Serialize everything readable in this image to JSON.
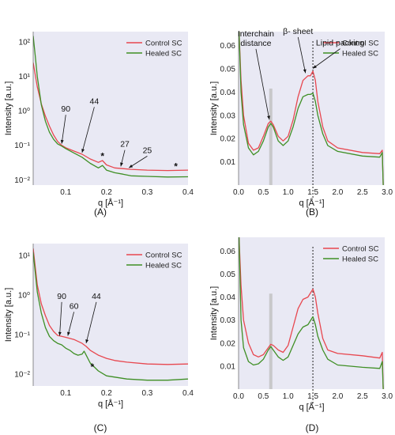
{
  "colors": {
    "control": "#e8474f",
    "healed": "#3f8f25",
    "panel_bg": "#e9e9f4",
    "gray_band": "#c2c2c2",
    "axis": "#222222"
  },
  "chart_data": [
    {
      "id": "A",
      "type": "line",
      "panel_label": "(A)",
      "xlabel": "q [Å⁻¹]",
      "ylabel": "Intensity [a.u.]",
      "yscale": "log",
      "xlim": [
        0.02,
        0.4
      ],
      "ylim": [
        0.007,
        200
      ],
      "x_ticks": [
        "0.1",
        "0.2",
        "0.3",
        "0.4"
      ],
      "x_tick_values": [
        0.1,
        0.2,
        0.3,
        0.4
      ],
      "y_ticks": [
        "10⁻²",
        "10⁻¹",
        "10⁰",
        "10¹",
        "10²"
      ],
      "y_tick_values": [
        0.01,
        0.1,
        1,
        10,
        100
      ],
      "grid": false,
      "legend": "top-right",
      "series": [
        {
          "name": "Control SC",
          "color": "#e8474f",
          "points": [
            [
              0.02,
              25
            ],
            [
              0.03,
              5
            ],
            [
              0.04,
              1.6
            ],
            [
              0.05,
              0.7
            ],
            [
              0.06,
              0.36
            ],
            [
              0.07,
              0.2
            ],
            [
              0.08,
              0.13
            ],
            [
              0.09,
              0.1
            ],
            [
              0.1,
              0.085
            ],
            [
              0.12,
              0.068
            ],
            [
              0.14,
              0.055
            ],
            [
              0.16,
              0.04
            ],
            [
              0.18,
              0.032
            ],
            [
              0.19,
              0.036
            ],
            [
              0.2,
              0.027
            ],
            [
              0.22,
              0.022
            ],
            [
              0.24,
              0.021
            ],
            [
              0.26,
              0.02
            ],
            [
              0.3,
              0.019
            ],
            [
              0.35,
              0.0185
            ],
            [
              0.4,
              0.019
            ]
          ]
        },
        {
          "name": "Healed SC",
          "color": "#3f8f25",
          "points": [
            [
              0.02,
              150
            ],
            [
              0.025,
              40
            ],
            [
              0.03,
              10
            ],
            [
              0.04,
              1.5
            ],
            [
              0.05,
              0.5
            ],
            [
              0.06,
              0.24
            ],
            [
              0.07,
              0.15
            ],
            [
              0.08,
              0.11
            ],
            [
              0.09,
              0.095
            ],
            [
              0.1,
              0.08
            ],
            [
              0.12,
              0.06
            ],
            [
              0.14,
              0.045
            ],
            [
              0.16,
              0.03
            ],
            [
              0.18,
              0.022
            ],
            [
              0.19,
              0.026
            ],
            [
              0.2,
              0.019
            ],
            [
              0.22,
              0.016
            ],
            [
              0.24,
              0.0145
            ],
            [
              0.26,
              0.013
            ],
            [
              0.3,
              0.0125
            ],
            [
              0.35,
              0.012
            ],
            [
              0.4,
              0.0122
            ]
          ]
        }
      ],
      "annotations": [
        {
          "text": "90",
          "at": [
            0.09,
            0.1
          ],
          "label_at": [
            0.1,
            0.95
          ]
        },
        {
          "text": "44",
          "at": [
            0.14,
            0.055
          ],
          "label_at": [
            0.17,
            1.6
          ]
        },
        {
          "text": "27",
          "at": [
            0.235,
            0.022
          ],
          "label_at": [
            0.245,
            0.09
          ]
        },
        {
          "text": "25",
          "at": [
            0.255,
            0.02
          ],
          "label_at": [
            0.3,
            0.06
          ]
        }
      ],
      "stars": [
        [
          0.19,
          0.048
        ],
        [
          0.37,
          0.024
        ]
      ]
    },
    {
      "id": "B",
      "type": "line",
      "panel_label": "(B)",
      "xlabel": "q [Å⁻¹]",
      "ylabel": "Intensity [a.u.]",
      "yscale": "linear",
      "xlim": [
        0,
        2.95
      ],
      "ylim": [
        0,
        0.066
      ],
      "x_ticks": [
        "0.0",
        "0.5",
        "1.0",
        "1.5",
        "2.0",
        "2.5",
        "3.0"
      ],
      "x_tick_values": [
        0,
        0.5,
        1,
        1.5,
        2,
        2.5,
        3
      ],
      "y_ticks": [
        "0.01",
        "0.02",
        "0.03",
        "0.04",
        "0.05",
        "0.06"
      ],
      "y_tick_values": [
        0.01,
        0.02,
        0.03,
        0.04,
        0.05,
        0.06
      ],
      "grid": false,
      "legend": "top-right",
      "vband": 0.65,
      "vline": 1.5,
      "series": [
        {
          "name": "Control SC",
          "color": "#e8474f",
          "points": [
            [
              0.01,
              0.066
            ],
            [
              0.05,
              0.045
            ],
            [
              0.1,
              0.03
            ],
            [
              0.2,
              0.018
            ],
            [
              0.3,
              0.015
            ],
            [
              0.4,
              0.016
            ],
            [
              0.5,
              0.021
            ],
            [
              0.6,
              0.0265
            ],
            [
              0.65,
              0.0275
            ],
            [
              0.7,
              0.026
            ],
            [
              0.8,
              0.021
            ],
            [
              0.9,
              0.019
            ],
            [
              1.0,
              0.021
            ],
            [
              1.1,
              0.028
            ],
            [
              1.2,
              0.038
            ],
            [
              1.3,
              0.045
            ],
            [
              1.4,
              0.047
            ],
            [
              1.45,
              0.047
            ],
            [
              1.5,
              0.049
            ],
            [
              1.55,
              0.045
            ],
            [
              1.6,
              0.036
            ],
            [
              1.7,
              0.025
            ],
            [
              1.8,
              0.019
            ],
            [
              2.0,
              0.016
            ],
            [
              2.5,
              0.014
            ],
            [
              2.85,
              0.0135
            ],
            [
              2.9,
              0.015
            ],
            [
              2.92,
              0.0
            ]
          ]
        },
        {
          "name": "Healed SC",
          "color": "#3f8f25",
          "points": [
            [
              0.01,
              0.066
            ],
            [
              0.05,
              0.04
            ],
            [
              0.1,
              0.026
            ],
            [
              0.2,
              0.016
            ],
            [
              0.3,
              0.013
            ],
            [
              0.4,
              0.0145
            ],
            [
              0.5,
              0.019
            ],
            [
              0.6,
              0.025
            ],
            [
              0.65,
              0.0265
            ],
            [
              0.7,
              0.025
            ],
            [
              0.8,
              0.019
            ],
            [
              0.9,
              0.017
            ],
            [
              1.0,
              0.019
            ],
            [
              1.1,
              0.025
            ],
            [
              1.2,
              0.033
            ],
            [
              1.3,
              0.038
            ],
            [
              1.4,
              0.039
            ],
            [
              1.45,
              0.039
            ],
            [
              1.5,
              0.0395
            ],
            [
              1.55,
              0.036
            ],
            [
              1.6,
              0.03
            ],
            [
              1.7,
              0.022
            ],
            [
              1.8,
              0.017
            ],
            [
              2.0,
              0.0145
            ],
            [
              2.5,
              0.0125
            ],
            [
              2.85,
              0.012
            ],
            [
              2.9,
              0.014
            ],
            [
              2.92,
              0.0
            ]
          ]
        }
      ],
      "annotations": [
        {
          "text": "Interchain\ndistance",
          "at": [
            0.62,
            0.0275
          ],
          "label_at": [
            0.35,
            0.064
          ]
        },
        {
          "text": "β- sheet",
          "at": [
            1.35,
            0.0475
          ],
          "label_at": [
            1.2,
            0.065
          ]
        },
        {
          "text": "Lipid packing",
          "at": [
            1.5,
            0.0495
          ],
          "label_at": [
            2.05,
            0.06
          ]
        }
      ]
    },
    {
      "id": "C",
      "type": "line",
      "panel_label": "(C)",
      "xlabel": "q [Å⁻¹]",
      "ylabel": "Intensity [a.u.]",
      "yscale": "log",
      "xlim": [
        0.02,
        0.4
      ],
      "ylim": [
        0.005,
        20
      ],
      "x_ticks": [
        "0.1",
        "0.2",
        "0.3",
        "0.4"
      ],
      "x_tick_values": [
        0.1,
        0.2,
        0.3,
        0.4
      ],
      "y_ticks": [
        "10⁻²",
        "10⁻¹",
        "10⁰",
        "10¹"
      ],
      "y_tick_values": [
        0.01,
        0.1,
        1,
        10
      ],
      "grid": false,
      "legend": "top-right",
      "series": [
        {
          "name": "Control SC",
          "color": "#e8474f",
          "points": [
            [
              0.02,
              15
            ],
            [
              0.03,
              1.8
            ],
            [
              0.04,
              0.6
            ],
            [
              0.05,
              0.3
            ],
            [
              0.06,
              0.17
            ],
            [
              0.07,
              0.12
            ],
            [
              0.08,
              0.095
            ],
            [
              0.09,
              0.09
            ],
            [
              0.1,
              0.085
            ],
            [
              0.12,
              0.075
            ],
            [
              0.14,
              0.06
            ],
            [
              0.15,
              0.05
            ],
            [
              0.16,
              0.04
            ],
            [
              0.18,
              0.03
            ],
            [
              0.2,
              0.025
            ],
            [
              0.22,
              0.022
            ],
            [
              0.25,
              0.02
            ],
            [
              0.3,
              0.018
            ],
            [
              0.35,
              0.0175
            ],
            [
              0.4,
              0.018
            ]
          ]
        },
        {
          "name": "Healed SC",
          "color": "#3f8f25",
          "points": [
            [
              0.02,
              12
            ],
            [
              0.03,
              1.2
            ],
            [
              0.04,
              0.35
            ],
            [
              0.05,
              0.15
            ],
            [
              0.06,
              0.09
            ],
            [
              0.07,
              0.07
            ],
            [
              0.08,
              0.06
            ],
            [
              0.09,
              0.055
            ],
            [
              0.1,
              0.045
            ],
            [
              0.11,
              0.04
            ],
            [
              0.12,
              0.033
            ],
            [
              0.13,
              0.03
            ],
            [
              0.14,
              0.032
            ],
            [
              0.145,
              0.038
            ],
            [
              0.15,
              0.03
            ],
            [
              0.16,
              0.019
            ],
            [
              0.18,
              0.012
            ],
            [
              0.2,
              0.009
            ],
            [
              0.25,
              0.0075
            ],
            [
              0.3,
              0.007
            ],
            [
              0.35,
              0.007
            ],
            [
              0.4,
              0.0075
            ]
          ]
        }
      ],
      "annotations": [
        {
          "text": "90",
          "at": [
            0.085,
            0.085
          ],
          "label_at": [
            0.09,
            0.8
          ]
        },
        {
          "text": "60",
          "at": [
            0.105,
            0.085
          ],
          "label_at": [
            0.12,
            0.45
          ]
        },
        {
          "text": "44",
          "at": [
            0.15,
            0.055
          ],
          "label_at": [
            0.175,
            0.8
          ]
        }
      ],
      "stars": [
        [
          0.165,
          0.015
        ]
      ]
    },
    {
      "id": "D",
      "type": "line",
      "panel_label": "(D)",
      "xlabel": "q [Å⁻¹]",
      "ylabel": "Intensity [a.u.]",
      "yscale": "linear",
      "xlim": [
        0,
        2.95
      ],
      "ylim": [
        0,
        0.066
      ],
      "x_ticks": [
        "0.0",
        "0.5",
        "1.0",
        "1.5",
        "2.0",
        "2.5",
        "3.0"
      ],
      "x_tick_values": [
        0,
        0.5,
        1,
        1.5,
        2,
        2.5,
        3
      ],
      "y_ticks": [
        "0.01",
        "0.02",
        "0.03",
        "0.04",
        "0.05",
        "0.06"
      ],
      "y_tick_values": [
        0.01,
        0.02,
        0.03,
        0.04,
        0.05,
        0.06
      ],
      "grid": false,
      "legend": "top-right",
      "vband": 0.65,
      "vline": 1.5,
      "series": [
        {
          "name": "Control SC",
          "color": "#e8474f",
          "points": [
            [
              0.01,
              0.066
            ],
            [
              0.05,
              0.045
            ],
            [
              0.1,
              0.03
            ],
            [
              0.2,
              0.02
            ],
            [
              0.3,
              0.015
            ],
            [
              0.4,
              0.014
            ],
            [
              0.5,
              0.015
            ],
            [
              0.6,
              0.018
            ],
            [
              0.65,
              0.0195
            ],
            [
              0.7,
              0.019
            ],
            [
              0.8,
              0.017
            ],
            [
              0.9,
              0.016
            ],
            [
              1.0,
              0.019
            ],
            [
              1.1,
              0.027
            ],
            [
              1.2,
              0.035
            ],
            [
              1.3,
              0.039
            ],
            [
              1.4,
              0.04
            ],
            [
              1.5,
              0.0435
            ],
            [
              1.55,
              0.04
            ],
            [
              1.6,
              0.033
            ],
            [
              1.7,
              0.022
            ],
            [
              1.8,
              0.017
            ],
            [
              2.0,
              0.0155
            ],
            [
              2.5,
              0.0145
            ],
            [
              2.85,
              0.0135
            ],
            [
              2.9,
              0.016
            ],
            [
              2.92,
              0.0
            ]
          ]
        },
        {
          "name": "Healed SC",
          "color": "#3f8f25",
          "points": [
            [
              0.01,
              0.066
            ],
            [
              0.05,
              0.03
            ],
            [
              0.1,
              0.018
            ],
            [
              0.2,
              0.012
            ],
            [
              0.3,
              0.0105
            ],
            [
              0.4,
              0.011
            ],
            [
              0.5,
              0.013
            ],
            [
              0.6,
              0.017
            ],
            [
              0.65,
              0.0185
            ],
            [
              0.7,
              0.017
            ],
            [
              0.8,
              0.014
            ],
            [
              0.9,
              0.0125
            ],
            [
              1.0,
              0.014
            ],
            [
              1.1,
              0.019
            ],
            [
              1.2,
              0.024
            ],
            [
              1.3,
              0.027
            ],
            [
              1.4,
              0.028
            ],
            [
              1.5,
              0.0315
            ],
            [
              1.55,
              0.028
            ],
            [
              1.6,
              0.023
            ],
            [
              1.7,
              0.017
            ],
            [
              1.8,
              0.013
            ],
            [
              2.0,
              0.0105
            ],
            [
              2.5,
              0.0095
            ],
            [
              2.85,
              0.009
            ],
            [
              2.9,
              0.012
            ],
            [
              2.92,
              0.0
            ]
          ]
        }
      ]
    }
  ]
}
